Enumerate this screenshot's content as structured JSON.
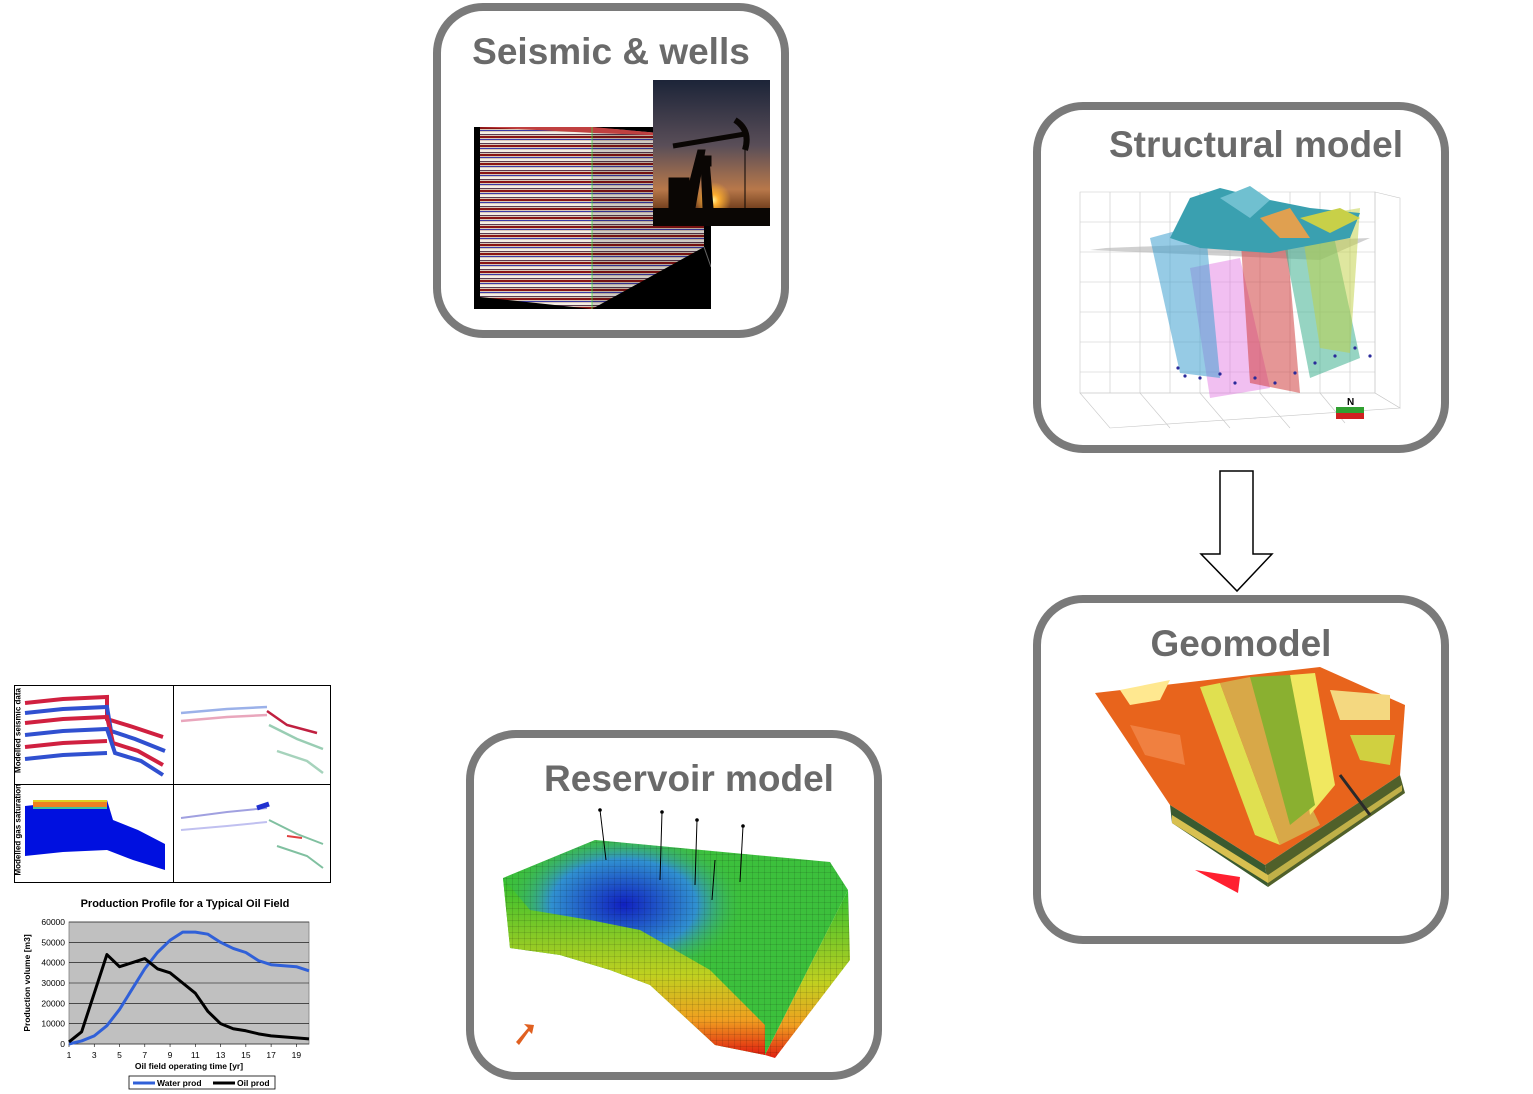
{
  "cards": {
    "seismic": {
      "title": "Seismic & wells"
    },
    "structural": {
      "title": "Structural model",
      "compass": "N"
    },
    "geomodel": {
      "title": "Geomodel"
    },
    "reservoir": {
      "title": "Reservoir model"
    }
  },
  "seismic_panels": {
    "top_ylabel": "Modelled seismic data",
    "bottom_ylabel": "Modelled gas saturation"
  },
  "chart_data": {
    "type": "line",
    "title": "Production Profile for a Typical Oil Field",
    "xlabel": "Oil field operating time [yr]",
    "ylabel": "Production volume [m3]",
    "x": [
      1,
      2,
      3,
      4,
      5,
      6,
      7,
      8,
      9,
      10,
      11,
      12,
      13,
      14,
      15,
      16,
      17,
      18,
      19,
      20
    ],
    "xticks": [
      "1",
      "3",
      "5",
      "7",
      "9",
      "11",
      "13",
      "15",
      "17",
      "19"
    ],
    "ylim": [
      0,
      60000
    ],
    "yticks": [
      "0",
      "10000",
      "20000",
      "30000",
      "40000",
      "50000",
      "60000"
    ],
    "grid": true,
    "legend_position": "bottom",
    "series": [
      {
        "name": "Water prod",
        "color": "#3060d8",
        "values": [
          0,
          1500,
          4000,
          9000,
          17000,
          27000,
          37000,
          45000,
          51000,
          55000,
          55000,
          54000,
          50000,
          47000,
          45000,
          41000,
          39000,
          38500,
          38000,
          36000
        ]
      },
      {
        "name": "Oil prod",
        "color": "#000000",
        "values": [
          1000,
          6000,
          25000,
          44000,
          38000,
          40000,
          42000,
          37000,
          35000,
          30000,
          25000,
          16000,
          10000,
          7500,
          6500,
          5000,
          4000,
          3500,
          3000,
          2500
        ]
      }
    ]
  }
}
